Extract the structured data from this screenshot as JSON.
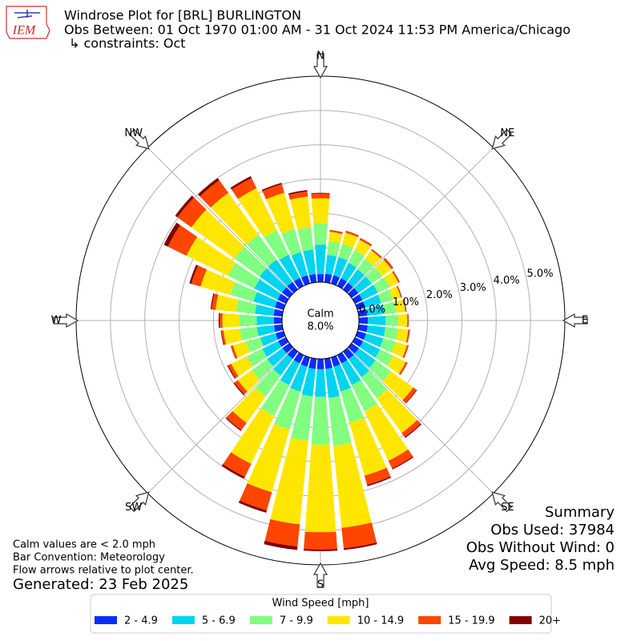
{
  "chart_data": {
    "type": "windrose",
    "logo_text": "IEM",
    "title_lines": [
      "Windrose Plot for [BRL] BURLINGTON",
      "Obs Between: 01 Oct 1970 01:00 AM - 31 Oct 2024 11:53 PM America/Chicago",
      "↳ constraints: Oct"
    ],
    "compass_labels": [
      "N",
      "NE",
      "E",
      "SE",
      "S",
      "SW",
      "W",
      "NW"
    ],
    "calm": {
      "label": "Calm",
      "value": 8.0,
      "value_label": "8.0%"
    },
    "rlim": [
      0,
      6
    ],
    "rticks": [
      {
        "value": 0,
        "label": "0.0%"
      },
      {
        "value": 1,
        "label": "1.0%"
      },
      {
        "value": 2,
        "label": "2.0%"
      },
      {
        "value": 3,
        "label": "3.0%"
      },
      {
        "value": 4,
        "label": "4.0%"
      },
      {
        "value": 5,
        "label": "5.0%"
      }
    ],
    "grid": true,
    "directions": [
      0,
      10,
      20,
      30,
      40,
      50,
      60,
      70,
      80,
      90,
      100,
      110,
      120,
      130,
      140,
      150,
      160,
      170,
      180,
      190,
      200,
      210,
      220,
      230,
      240,
      250,
      260,
      270,
      280,
      290,
      300,
      310,
      320,
      330,
      340,
      350
    ],
    "legend_title": "Wind Speed [mph]",
    "series": [
      {
        "name": "2 - 4.9",
        "color": "#0a2dff",
        "values": [
          0.23,
          0.25,
          0.25,
          0.25,
          0.24,
          0.24,
          0.24,
          0.24,
          0.25,
          0.26,
          0.26,
          0.26,
          0.26,
          0.26,
          0.27,
          0.27,
          0.28,
          0.3,
          0.3,
          0.3,
          0.28,
          0.27,
          0.26,
          0.25,
          0.25,
          0.24,
          0.24,
          0.24,
          0.25,
          0.26,
          0.27,
          0.27,
          0.27,
          0.26,
          0.25,
          0.24
        ]
      },
      {
        "name": "5 - 6.9",
        "color": "#00d4f0",
        "values": [
          0.86,
          0.55,
          0.55,
          0.5,
          0.48,
          0.48,
          0.5,
          0.48,
          0.5,
          0.52,
          0.52,
          0.52,
          0.55,
          0.6,
          0.65,
          0.7,
          0.75,
          0.85,
          0.8,
          0.8,
          0.75,
          0.7,
          0.6,
          0.55,
          0.52,
          0.46,
          0.5,
          0.5,
          0.55,
          0.65,
          0.75,
          0.8,
          0.8,
          0.75,
          0.7,
          0.72
        ]
      },
      {
        "name": "7 - 9.9",
        "color": "#80ff80",
        "values": [
          0.63,
          0.4,
          0.4,
          0.4,
          0.38,
          0.38,
          0.38,
          0.35,
          0.35,
          0.36,
          0.36,
          0.38,
          0.42,
          0.55,
          0.75,
          0.85,
          0.95,
          1.4,
          1.4,
          1.3,
          1.15,
          1.0,
          0.75,
          0.55,
          0.5,
          0.43,
          0.5,
          0.5,
          0.55,
          0.7,
          0.85,
          0.9,
          0.9,
          0.8,
          0.7,
          0.65
        ]
      },
      {
        "name": "10 - 14.9",
        "color": "#ffe600",
        "values": [
          0.72,
          0.28,
          0.34,
          0.34,
          0.3,
          0.33,
          0.28,
          0.24,
          0.26,
          0.27,
          0.31,
          0.34,
          0.41,
          0.8,
          1.25,
          1.6,
          1.6,
          2.4,
          2.55,
          2.45,
          1.9,
          1.55,
          0.95,
          0.5,
          0.5,
          0.4,
          0.48,
          0.5,
          0.6,
          0.9,
          1.35,
          1.55,
          1.5,
          1.35,
          1.1,
          0.9
        ]
      },
      {
        "name": "15 - 19.9",
        "color": "#ff4500",
        "values": [
          0.14,
          0.04,
          0.05,
          0.05,
          0.04,
          0.06,
          0.04,
          0.03,
          0.03,
          0.03,
          0.04,
          0.04,
          0.05,
          0.12,
          0.15,
          0.25,
          0.28,
          0.6,
          0.5,
          0.65,
          0.55,
          0.42,
          0.26,
          0.12,
          0.1,
          0.06,
          0.06,
          0.08,
          0.12,
          0.28,
          0.6,
          0.5,
          0.45,
          0.33,
          0.26,
          0.15
        ]
      },
      {
        "name": "20+",
        "color": "#800000",
        "values": [
          0.02,
          0.01,
          0.01,
          0.01,
          0.01,
          0.01,
          0.01,
          0.01,
          0.01,
          0.01,
          0.01,
          0.01,
          0.01,
          0.02,
          0.03,
          0.03,
          0.04,
          0.05,
          0.05,
          0.1,
          0.07,
          0.06,
          0.03,
          0.03,
          0.03,
          0.01,
          0.02,
          0.03,
          0.03,
          0.06,
          0.13,
          0.08,
          0.08,
          0.06,
          0.04,
          0.04
        ]
      }
    ],
    "notes": [
      "Calm values are < 2.0 mph",
      "Bar Convention: Meteorology",
      "Flow arrows relative to plot center."
    ],
    "generated": "Generated: 23 Feb 2025",
    "summary": [
      "Summary",
      "Obs Used: 37984",
      "Obs Without Wind: 0",
      "Avg Speed: 8.5 mph"
    ]
  }
}
